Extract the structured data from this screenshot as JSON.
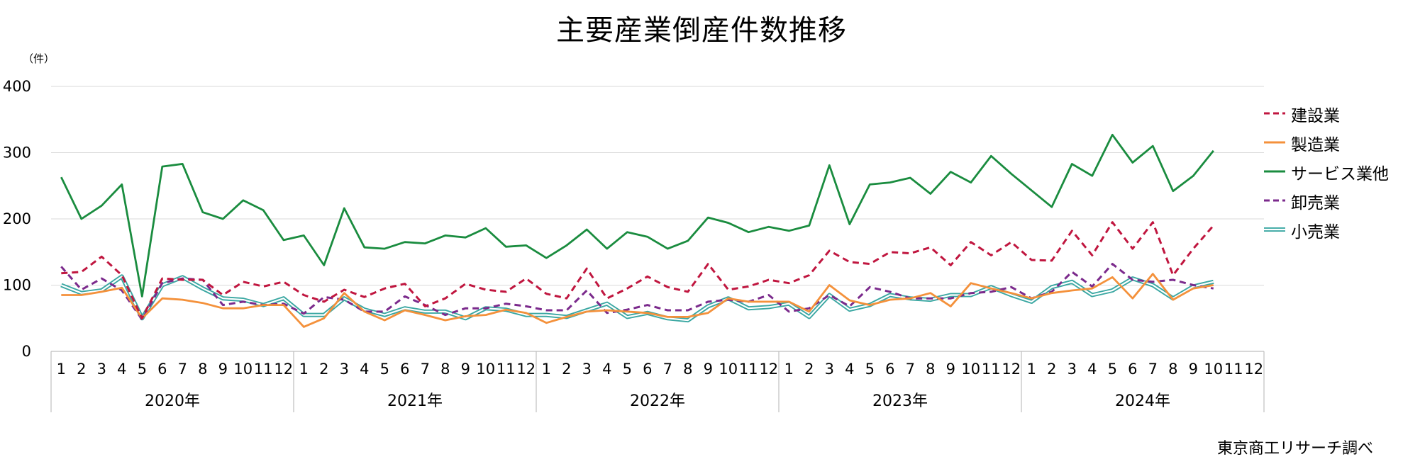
{
  "title": "主要産業倒産件数推移",
  "unit_label": "（件）",
  "source": "東京商工リサーチ調べ",
  "chart_data": {
    "type": "line",
    "title": "主要産業倒産件数推移",
    "ylabel": "（件）",
    "ylim": [
      0,
      400
    ],
    "yticks": [
      0,
      100,
      200,
      300,
      400
    ],
    "grid": true,
    "legend": "right",
    "years": [
      "2020年",
      "2021年",
      "2022年",
      "2023年",
      "2024年"
    ],
    "months": [
      "1",
      "2",
      "3",
      "4",
      "5",
      "6",
      "7",
      "8",
      "9",
      "10",
      "11",
      "12"
    ],
    "series": [
      {
        "name": "建設業",
        "color": "#c0163f",
        "style": "dashed",
        "values": [
          118,
          120,
          143,
          115,
          50,
          110,
          108,
          108,
          85,
          105,
          98,
          105,
          85,
          75,
          93,
          82,
          95,
          102,
          68,
          80,
          102,
          93,
          90,
          110,
          87,
          80,
          125,
          80,
          95,
          113,
          97,
          90,
          132,
          93,
          98,
          108,
          103,
          115,
          152,
          135,
          132,
          150,
          148,
          157,
          130,
          165,
          145,
          165,
          138,
          137,
          182,
          145,
          195,
          155,
          195,
          115,
          155,
          190,
          null,
          null
        ]
      },
      {
        "name": "製造業",
        "color": "#f4913b",
        "style": "solid",
        "values": [
          85,
          85,
          90,
          96,
          50,
          80,
          78,
          73,
          65,
          65,
          70,
          70,
          37,
          50,
          88,
          60,
          47,
          62,
          55,
          47,
          53,
          55,
          63,
          58,
          43,
          52,
          60,
          62,
          60,
          58,
          52,
          52,
          58,
          80,
          75,
          75,
          75,
          60,
          100,
          77,
          70,
          78,
          80,
          88,
          68,
          103,
          95,
          88,
          80,
          88,
          92,
          95,
          112,
          80,
          117,
          78,
          95,
          100,
          null,
          null
        ]
      },
      {
        "name": "サービス業他",
        "color": "#1a8c3f",
        "style": "solid",
        "values": [
          263,
          200,
          220,
          252,
          83,
          279,
          283,
          210,
          200,
          228,
          213,
          168,
          175,
          130,
          216,
          157,
          155,
          165,
          163,
          175,
          172,
          186,
          158,
          160,
          141,
          160,
          184,
          155,
          180,
          173,
          155,
          167,
          202,
          194,
          180,
          188,
          182,
          190,
          281,
          192,
          252,
          255,
          262,
          238,
          271,
          255,
          295,
          268,
          243,
          218,
          283,
          265,
          327,
          285,
          310,
          242,
          265,
          303,
          null,
          null
        ]
      },
      {
        "name": "卸売業",
        "color": "#7b2a8c",
        "style": "dashed",
        "values": [
          128,
          93,
          110,
          92,
          48,
          103,
          110,
          108,
          70,
          75,
          70,
          72,
          57,
          82,
          78,
          60,
          60,
          83,
          70,
          55,
          65,
          65,
          72,
          68,
          62,
          62,
          92,
          58,
          63,
          70,
          62,
          62,
          75,
          78,
          75,
          85,
          60,
          65,
          85,
          68,
          97,
          90,
          80,
          80,
          80,
          88,
          90,
          97,
          80,
          90,
          120,
          98,
          132,
          108,
          105,
          108,
          100,
          95,
          null,
          null
        ]
      },
      {
        "name": "小売業",
        "color": "#3aa7a2",
        "style": "double",
        "values": [
          100,
          88,
          92,
          113,
          50,
          100,
          112,
          95,
          80,
          78,
          70,
          80,
          55,
          55,
          80,
          63,
          55,
          65,
          60,
          60,
          50,
          65,
          63,
          55,
          55,
          52,
          62,
          72,
          52,
          58,
          50,
          47,
          68,
          80,
          65,
          67,
          72,
          52,
          85,
          63,
          70,
          85,
          80,
          78,
          85,
          85,
          97,
          85,
          75,
          97,
          105,
          85,
          92,
          110,
          100,
          80,
          98,
          105,
          null,
          null
        ]
      }
    ]
  }
}
